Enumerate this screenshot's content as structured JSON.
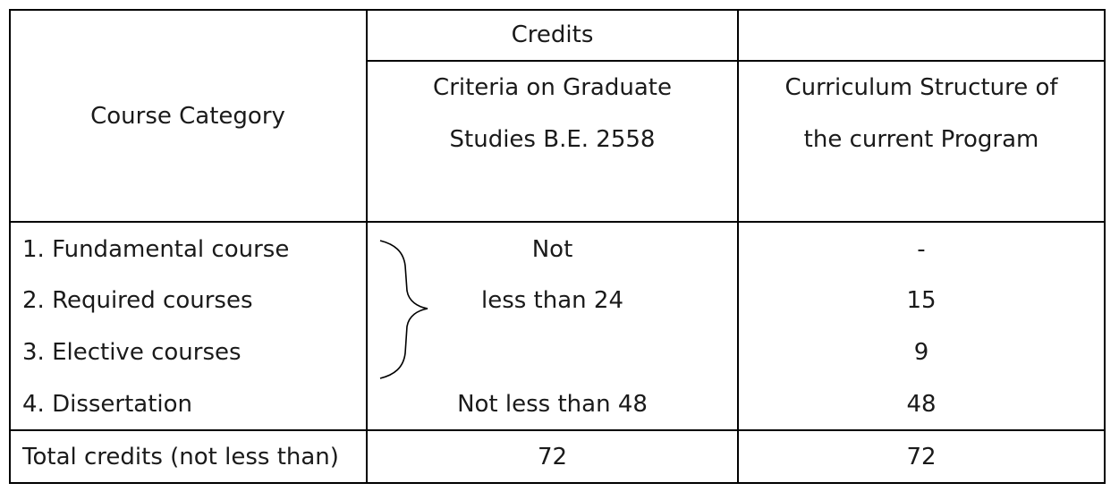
{
  "table": {
    "header": {
      "category": "Course Category",
      "credits": "Credits",
      "criteria_line1": "Criteria on Graduate",
      "criteria_line2": "Studies B.E. 2558",
      "current_line1": "Curriculum Structure of",
      "current_line2": "the current Program"
    },
    "rows": [
      {
        "category": "1. Fundamental course",
        "criteria": "Not",
        "current": "-"
      },
      {
        "category": "2. Required courses",
        "criteria": "less than 24",
        "current": "15"
      },
      {
        "category": "3. Elective courses",
        "criteria": "",
        "current": "9"
      },
      {
        "category": "4. Dissertation",
        "criteria": "Not less than 48",
        "current": "48"
      }
    ],
    "total": {
      "category": "Total credits (not less than)",
      "criteria": "72",
      "current": "72"
    }
  }
}
